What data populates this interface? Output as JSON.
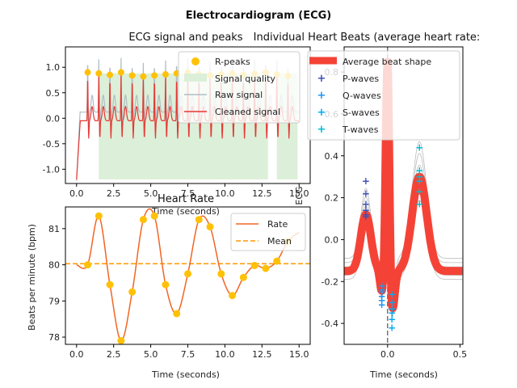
{
  "figure": {
    "suptitle": "Electrocardiogram (ECG)"
  },
  "chart_data": [
    {
      "id": "signal",
      "type": "line",
      "title": "ECG signal and peaks",
      "xlabel": "Time (seconds)",
      "ylabel": "",
      "xlim": [
        -0.75,
        15.75
      ],
      "ylim": [
        -1.28,
        1.4
      ],
      "xticks": [
        "0.0",
        "2.5",
        "5.0",
        "7.5",
        "10.0",
        "12.5",
        "15.0"
      ],
      "yticks": [
        "-1.0",
        "-0.5",
        "0.0",
        "0.5",
        "1.0"
      ],
      "legend": {
        "placement": "top-right",
        "entries": [
          "R-peaks",
          "Signal quality",
          "Raw signal",
          "Cleaned signal"
        ]
      },
      "r_peaks": {
        "x": [
          0.75,
          1.5,
          2.25,
          3.0,
          3.75,
          4.5,
          5.25,
          6.0,
          6.75,
          7.5,
          8.25,
          9.0,
          9.75,
          10.5,
          11.25,
          12.0,
          12.75,
          13.5,
          14.25
        ],
        "y": [
          0.9,
          0.88,
          0.85,
          0.9,
          0.84,
          0.82,
          0.84,
          0.86,
          0.88,
          0.9,
          0.86,
          0.84,
          0.86,
          0.88,
          0.85,
          0.87,
          0.9,
          0.86,
          0.83
        ]
      },
      "signal_quality": {
        "regions": [
          [
            1.5,
            12.9
          ],
          [
            13.5,
            14.9
          ]
        ],
        "low": -1.2,
        "high": 0.88
      },
      "colors": {
        "r_peaks": "#ffc107",
        "quality": "#dcefd8",
        "raw": "#b0bec5",
        "cleaned": "#e53935"
      }
    },
    {
      "id": "rate",
      "type": "line",
      "title": "Heart Rate",
      "xlabel": "Time (seconds)",
      "ylabel": "Beats per minute (bpm)",
      "xlim": [
        -0.75,
        15.75
      ],
      "ylim": [
        77.8,
        81.6
      ],
      "xticks": [
        "0.0",
        "2.5",
        "5.0",
        "7.5",
        "10.0",
        "12.5",
        "15.0"
      ],
      "yticks": [
        "78",
        "79",
        "80",
        "81"
      ],
      "legend": {
        "placement": "top-right",
        "entries": [
          "Rate",
          "Mean"
        ]
      },
      "points": {
        "x": [
          0.75,
          1.5,
          2.25,
          3.0,
          3.75,
          4.5,
          5.25,
          6.0,
          6.75,
          7.5,
          8.25,
          9.0,
          9.75,
          10.5,
          11.25,
          12.0,
          12.75,
          13.5,
          14.25
        ],
        "y": [
          80.0,
          81.35,
          79.45,
          77.9,
          79.25,
          81.25,
          81.35,
          79.45,
          78.65,
          79.75,
          81.25,
          81.05,
          79.75,
          79.15,
          79.65,
          79.98,
          79.9,
          80.1,
          80.65
        ]
      },
      "mean": 80.03,
      "colors": {
        "rate": "#f26522",
        "mean": "#ff9800",
        "points": "#ffc107"
      }
    },
    {
      "id": "beats",
      "type": "line",
      "title": "Individual Heart Beats (average heart rate:",
      "xlabel": "Time (seconds)",
      "ylabel": "ECG",
      "xlim": [
        -0.3,
        0.52
      ],
      "ylim": [
        -0.5,
        0.92
      ],
      "xticks": [
        "0.0",
        "0.5"
      ],
      "yticks": [
        "-0.4",
        "-0.2",
        "0.0",
        "0.2",
        "0.4",
        "0.6",
        "0.8"
      ],
      "legend": {
        "placement": "top",
        "entries": [
          "Average beat shape",
          "P-waves",
          "Q-waves",
          "S-waves",
          "T-waves"
        ]
      },
      "waves": {
        "P": {
          "x": [
            -0.15,
            -0.15,
            -0.15,
            -0.15,
            -0.15,
            -0.15
          ],
          "y": [
            0.28,
            0.22,
            0.17,
            0.14,
            0.12,
            0.11
          ]
        },
        "Q": {
          "x": [
            -0.04,
            -0.04,
            -0.04,
            -0.04,
            -0.04,
            -0.04
          ],
          "y": [
            -0.22,
            -0.24,
            -0.25,
            -0.27,
            -0.29,
            -0.31
          ]
        },
        "S": {
          "x": [
            0.03,
            0.03,
            0.03,
            0.03,
            0.03,
            0.03
          ],
          "y": [
            -0.26,
            -0.3,
            -0.33,
            -0.35,
            -0.38,
            -0.42
          ]
        },
        "T": {
          "x": [
            0.22,
            0.22,
            0.22,
            0.22,
            0.22,
            0.22
          ],
          "y": [
            0.44,
            0.33,
            0.3,
            0.28,
            0.23,
            0.17
          ]
        }
      },
      "colors": {
        "average": "#f44336",
        "P": "#3f51b5",
        "Q": "#2196f3",
        "S": "#03a9f4",
        "T": "#00bcd4",
        "individual": "#bbbbbb"
      }
    }
  ]
}
